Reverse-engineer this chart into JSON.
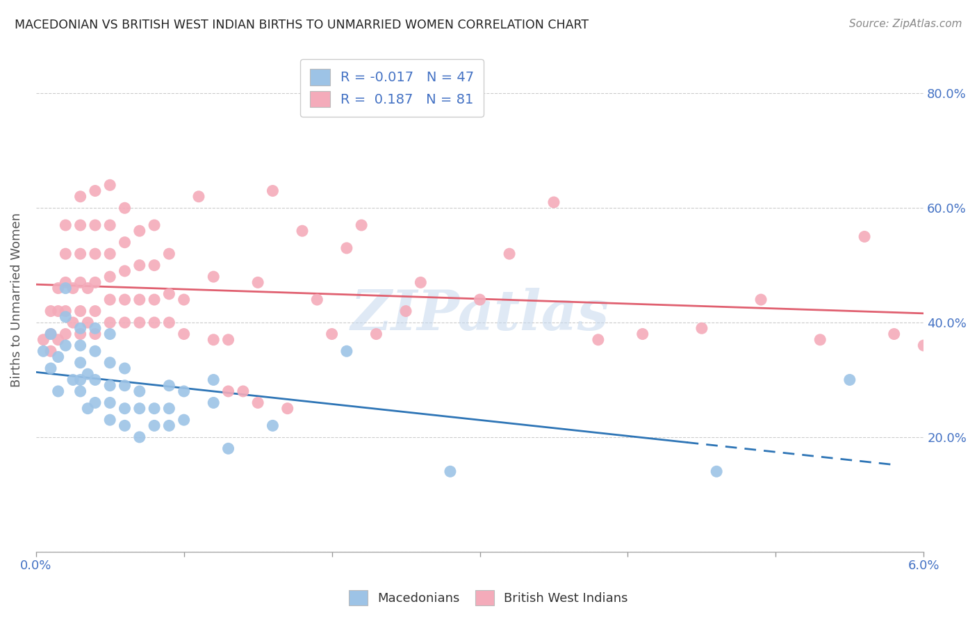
{
  "title": "MACEDONIAN VS BRITISH WEST INDIAN BIRTHS TO UNMARRIED WOMEN CORRELATION CHART",
  "source": "Source: ZipAtlas.com",
  "ylabel": "Births to Unmarried Women",
  "xlim": [
    0.0,
    0.06
  ],
  "ylim": [
    0.0,
    0.88
  ],
  "xtick_vals": [
    0.0,
    0.01,
    0.02,
    0.03,
    0.04,
    0.05,
    0.06
  ],
  "xticklabels": [
    "0.0%",
    "",
    "",
    "",
    "",
    "",
    "6.0%"
  ],
  "ytick_vals": [
    0.0,
    0.2,
    0.4,
    0.6,
    0.8
  ],
  "yticklabels_right": [
    "",
    "20.0%",
    "40.0%",
    "60.0%",
    "80.0%"
  ],
  "macedonian_color": "#9DC3E6",
  "bwi_color": "#F4ABBA",
  "macedonian_line_color": "#2E75B6",
  "bwi_line_color": "#E06070",
  "legend_R_macedonian": "-0.017",
  "legend_N_macedonian": "47",
  "legend_R_bwi": "0.187",
  "legend_N_bwi": "81",
  "watermark": "ZIPatlas",
  "macedonian_x": [
    0.0005,
    0.001,
    0.001,
    0.0015,
    0.0015,
    0.002,
    0.002,
    0.002,
    0.0025,
    0.003,
    0.003,
    0.003,
    0.003,
    0.003,
    0.0035,
    0.0035,
    0.004,
    0.004,
    0.004,
    0.004,
    0.005,
    0.005,
    0.005,
    0.005,
    0.005,
    0.006,
    0.006,
    0.006,
    0.006,
    0.007,
    0.007,
    0.007,
    0.008,
    0.008,
    0.009,
    0.009,
    0.009,
    0.01,
    0.01,
    0.012,
    0.012,
    0.013,
    0.016,
    0.021,
    0.028,
    0.046,
    0.055
  ],
  "macedonian_y": [
    0.35,
    0.32,
    0.38,
    0.28,
    0.34,
    0.36,
    0.41,
    0.46,
    0.3,
    0.28,
    0.3,
    0.33,
    0.36,
    0.39,
    0.25,
    0.31,
    0.26,
    0.3,
    0.35,
    0.39,
    0.23,
    0.26,
    0.29,
    0.33,
    0.38,
    0.22,
    0.25,
    0.29,
    0.32,
    0.2,
    0.25,
    0.28,
    0.22,
    0.25,
    0.22,
    0.25,
    0.29,
    0.23,
    0.28,
    0.26,
    0.3,
    0.18,
    0.22,
    0.35,
    0.14,
    0.14,
    0.3
  ],
  "bwi_x": [
    0.0005,
    0.001,
    0.001,
    0.001,
    0.0015,
    0.0015,
    0.0015,
    0.002,
    0.002,
    0.002,
    0.002,
    0.002,
    0.0025,
    0.0025,
    0.003,
    0.003,
    0.003,
    0.003,
    0.003,
    0.003,
    0.0035,
    0.0035,
    0.004,
    0.004,
    0.004,
    0.004,
    0.004,
    0.004,
    0.005,
    0.005,
    0.005,
    0.005,
    0.005,
    0.005,
    0.006,
    0.006,
    0.006,
    0.006,
    0.006,
    0.007,
    0.007,
    0.007,
    0.007,
    0.008,
    0.008,
    0.008,
    0.008,
    0.009,
    0.009,
    0.009,
    0.01,
    0.01,
    0.011,
    0.012,
    0.012,
    0.013,
    0.013,
    0.014,
    0.015,
    0.015,
    0.016,
    0.017,
    0.018,
    0.019,
    0.02,
    0.021,
    0.022,
    0.023,
    0.025,
    0.026,
    0.03,
    0.032,
    0.035,
    0.038,
    0.041,
    0.045,
    0.049,
    0.053,
    0.056,
    0.058,
    0.06
  ],
  "bwi_y": [
    0.37,
    0.35,
    0.38,
    0.42,
    0.37,
    0.42,
    0.46,
    0.38,
    0.42,
    0.47,
    0.52,
    0.57,
    0.4,
    0.46,
    0.38,
    0.42,
    0.47,
    0.52,
    0.57,
    0.62,
    0.4,
    0.46,
    0.38,
    0.42,
    0.47,
    0.52,
    0.57,
    0.63,
    0.4,
    0.44,
    0.48,
    0.52,
    0.57,
    0.64,
    0.4,
    0.44,
    0.49,
    0.54,
    0.6,
    0.4,
    0.44,
    0.5,
    0.56,
    0.4,
    0.44,
    0.5,
    0.57,
    0.4,
    0.45,
    0.52,
    0.38,
    0.44,
    0.62,
    0.37,
    0.48,
    0.28,
    0.37,
    0.28,
    0.26,
    0.47,
    0.63,
    0.25,
    0.56,
    0.44,
    0.38,
    0.53,
    0.57,
    0.38,
    0.42,
    0.47,
    0.44,
    0.52,
    0.61,
    0.37,
    0.38,
    0.39,
    0.44,
    0.37,
    0.55,
    0.38,
    0.36
  ]
}
